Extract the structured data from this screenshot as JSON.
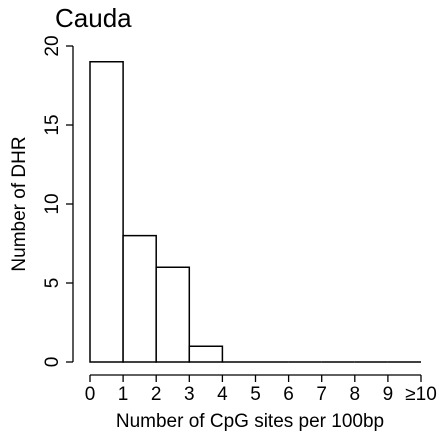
{
  "chart_data": {
    "type": "histogram",
    "title": "Cauda",
    "x_label": "Number of CpG sites per 100bp",
    "y_label": "Number of DHR",
    "bins": [
      0,
      1,
      2,
      3,
      4,
      5,
      6,
      7,
      8,
      9,
      10
    ],
    "values": [
      19,
      8,
      6,
      1,
      0,
      0,
      0,
      0,
      0,
      0
    ],
    "color": "#ffffff",
    "xlim": [
      0,
      10
    ],
    "ylim": [
      0,
      20
    ],
    "xticks": [
      0,
      1,
      2,
      3,
      4,
      5,
      6,
      7,
      8,
      9,
      {
        "value": 10,
        "label": "≥10"
      }
    ],
    "yticks": [
      0,
      5,
      10,
      15,
      20
    ]
  }
}
